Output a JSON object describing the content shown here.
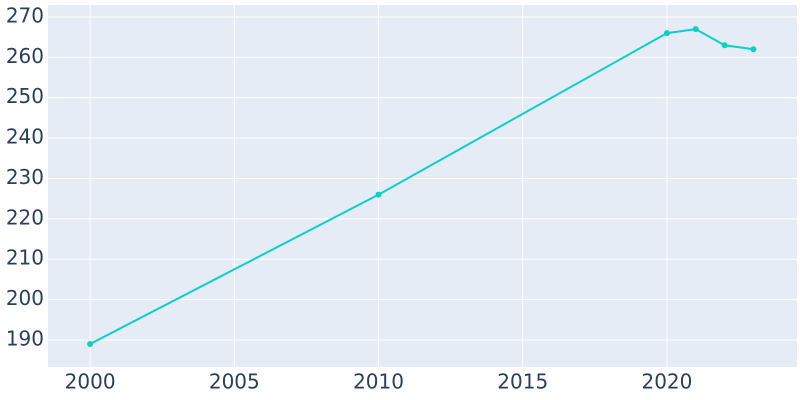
{
  "chart_data": {
    "type": "line",
    "x": [
      2000,
      2010,
      2020,
      2021,
      2022,
      2023
    ],
    "series": [
      {
        "color": "#0dcfc4",
        "values": [
          189,
          226,
          266,
          267,
          263,
          262
        ]
      }
    ],
    "xlim": [
      1998.54,
      2024.51
    ],
    "xticks": [
      2000,
      2005,
      2010,
      2015,
      2020
    ],
    "ylim": [
      183.31,
      272.97
    ],
    "yticks": [
      190,
      200,
      210,
      220,
      230,
      240,
      250,
      260,
      270
    ],
    "grid": true
  }
}
